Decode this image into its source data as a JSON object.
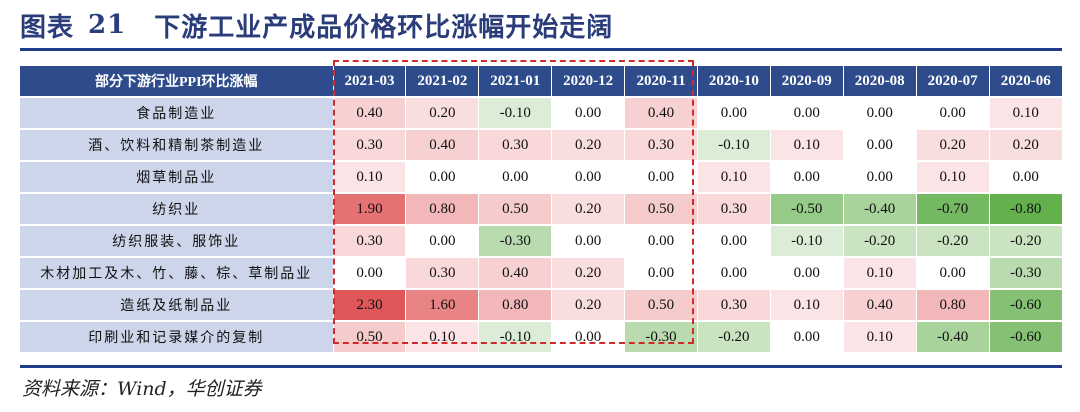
{
  "title": {
    "prefix": "图表",
    "number": "21",
    "text": "下游工业产成品价格环比涨幅开始走阔"
  },
  "source": "资料来源：Wind，华创证券",
  "chart_data": {
    "type": "table",
    "row_header_label": "部分下游行业PPI环比涨幅",
    "columns": [
      "2021-03",
      "2021-02",
      "2021-01",
      "2020-12",
      "2020-11",
      "2020-10",
      "2020-09",
      "2020-08",
      "2020-07",
      "2020-06"
    ],
    "rows": [
      {
        "name": "食品制造业",
        "values": [
          0.4,
          0.2,
          -0.1,
          0.0,
          0.4,
          0.0,
          0.0,
          0.0,
          0.0,
          0.1
        ]
      },
      {
        "name": "酒、饮料和精制茶制造业",
        "values": [
          0.3,
          0.4,
          0.3,
          0.2,
          0.3,
          -0.1,
          0.1,
          0.0,
          0.2,
          0.2
        ]
      },
      {
        "name": "烟草制品业",
        "values": [
          0.1,
          0.0,
          0.0,
          0.0,
          0.0,
          0.1,
          0.0,
          0.0,
          0.1,
          0.0
        ]
      },
      {
        "name": "纺织业",
        "values": [
          1.9,
          0.8,
          0.5,
          0.2,
          0.5,
          0.3,
          -0.5,
          -0.4,
          -0.7,
          -0.8
        ]
      },
      {
        "name": "纺织服装、服饰业",
        "values": [
          0.3,
          0.0,
          -0.3,
          0.0,
          0.0,
          0.0,
          -0.1,
          -0.2,
          -0.2,
          -0.2
        ]
      },
      {
        "name": "木材加工及木、竹、藤、棕、草制品业",
        "values": [
          0.0,
          0.3,
          0.4,
          0.2,
          0.0,
          0.0,
          0.0,
          0.1,
          0.0,
          -0.3
        ]
      },
      {
        "name": "造纸及纸制品业",
        "values": [
          2.3,
          1.6,
          0.8,
          0.2,
          0.5,
          0.3,
          0.1,
          0.4,
          0.8,
          -0.6
        ]
      },
      {
        "name": "印刷业和记录媒介的复制",
        "values": [
          0.5,
          0.1,
          -0.1,
          0.0,
          -0.3,
          -0.2,
          0.0,
          0.1,
          -0.4,
          -0.6
        ]
      }
    ],
    "highlighted_columns": [
      "2021-03",
      "2021-02",
      "2021-01",
      "2020-12",
      "2020-11"
    ],
    "colors": {
      "positive": "#e0575a",
      "negative": "#63b04d",
      "header": "#2e4c8c",
      "label_bg": "#cdd5ea",
      "highlight_border": "#d12a2a"
    }
  }
}
